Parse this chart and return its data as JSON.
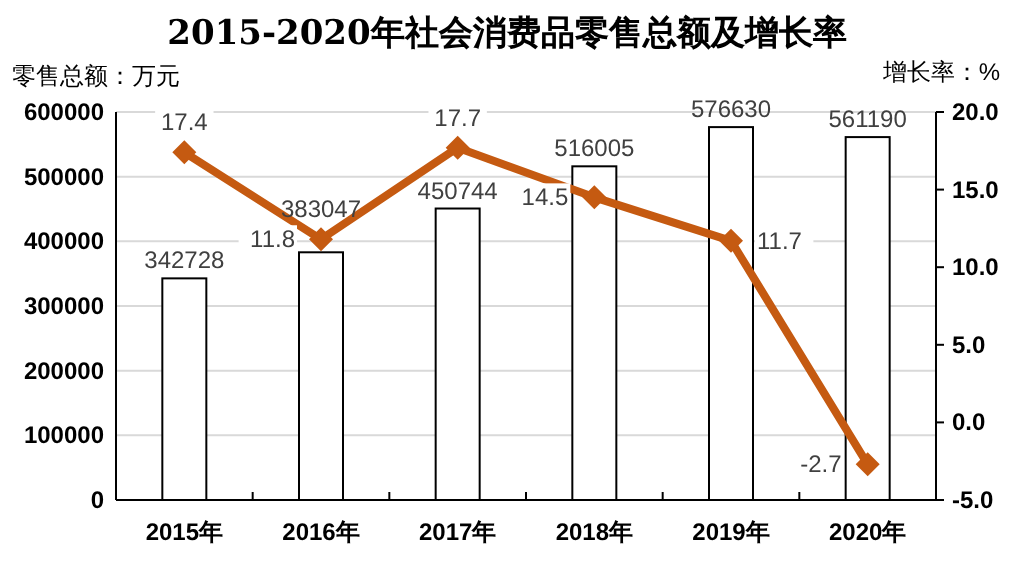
{
  "chart_data": {
    "type": "bar",
    "title": "2015-2020年社会消费品零售总额及增长率",
    "ylabel": "零售总额：万元",
    "y2label": "增长率：%",
    "categories": [
      "2015年",
      "2016年",
      "2017年",
      "2018年",
      "2019年",
      "2020年"
    ],
    "series": [
      {
        "type": "bar",
        "color": "#ffffff",
        "values": [
          342728,
          383047,
          450744,
          516005,
          576630,
          561190
        ]
      },
      {
        "type": "line",
        "axis": "y2",
        "color": "#c55a11",
        "marker": "diamond",
        "values": [
          17.4,
          11.8,
          17.7,
          14.5,
          11.7,
          -2.7
        ]
      }
    ],
    "ylim": [
      0,
      600000
    ],
    "yticks": [
      0,
      100000,
      200000,
      300000,
      400000,
      500000,
      600000
    ],
    "y2lim": [
      -5,
      20
    ],
    "y2ticks": [
      {
        "value": -5,
        "label": "-5.0"
      },
      {
        "value": 0,
        "label": "0.0"
      },
      {
        "value": 5,
        "label": "5.0"
      },
      {
        "value": 10,
        "label": "10.0"
      },
      {
        "value": 15,
        "label": "15.0"
      },
      {
        "value": 20,
        "label": "20.0"
      }
    ],
    "grid": "y",
    "data_labels": true
  }
}
